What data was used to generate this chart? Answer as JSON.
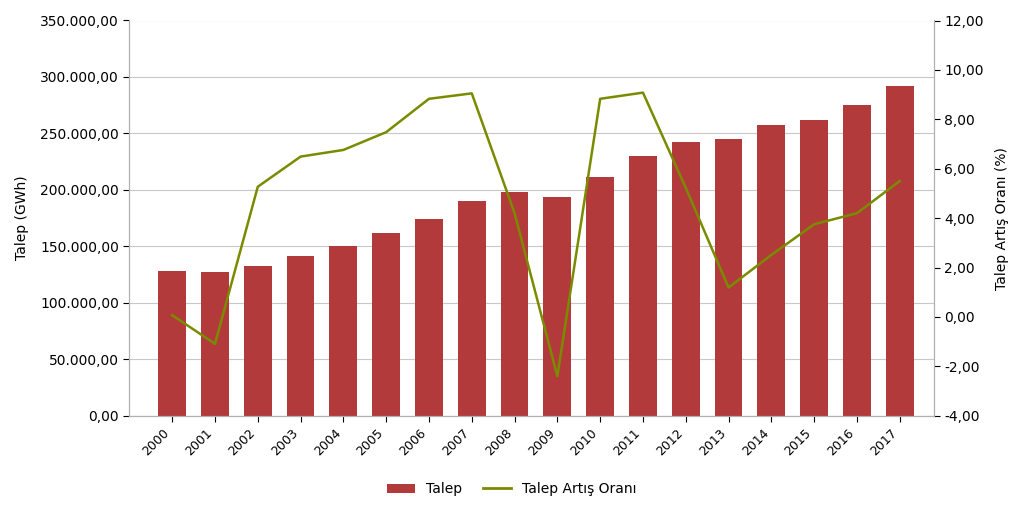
{
  "years": [
    2000,
    2001,
    2002,
    2003,
    2004,
    2005,
    2006,
    2007,
    2008,
    2009,
    2010,
    2011,
    2012,
    2013,
    2014,
    2015,
    2016,
    2017
  ],
  "talep": [
    128276,
    126871,
    132553,
    141151,
    150698,
    161956,
    174637,
    190446,
    198418,
    194080,
    211208,
    230322,
    242370,
    245267,
    257220,
    261783,
    275000,
    291800
  ],
  "artis": [
    0.07,
    -1.09,
    5.27,
    6.49,
    6.76,
    7.48,
    8.83,
    9.05,
    4.2,
    -2.4,
    8.83,
    9.08,
    5.23,
    1.19,
    2.51,
    3.75,
    4.2,
    5.5
  ],
  "bar_color": "#B33A3A",
  "line_color": "#7B8B00",
  "ylabel_left": "Talep (GWh)",
  "ylabel_right": "Talep Artış Oranı (%)",
  "legend_bar": "Talep",
  "legend_line": "Talep Artış Oranı",
  "ylim_left": [
    0,
    350000
  ],
  "ylim_right": [
    -4,
    12
  ],
  "yticks_left": [
    0,
    50000,
    100000,
    150000,
    200000,
    250000,
    300000,
    350000
  ],
  "yticks_right": [
    -4.0,
    -2.0,
    0.0,
    2.0,
    4.0,
    6.0,
    8.0,
    10.0,
    12.0
  ],
  "background_color": "#ffffff",
  "grid_color": "#c8c8c8",
  "border_color": "#b0b0b0"
}
